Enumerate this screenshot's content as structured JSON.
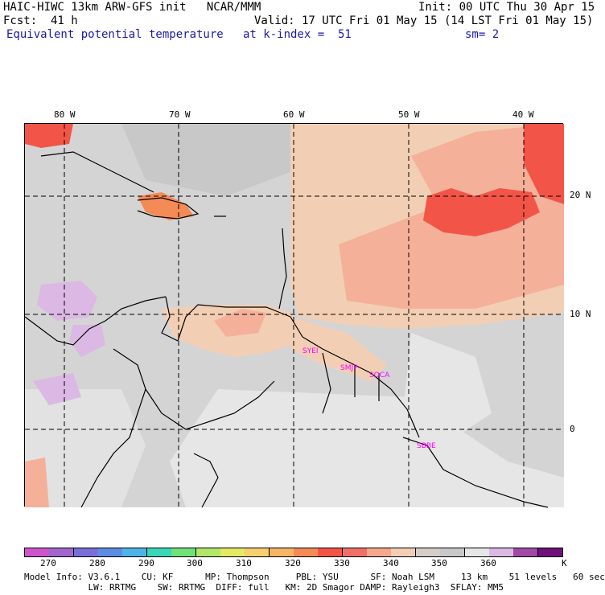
{
  "header": {
    "model_line": "HAIC-HIWC 13km ARW-GFS init   NCAR/MMM",
    "init_line": "Init: 00 UTC Thu 30 Apr 15",
    "fcst_line": "Fcst:  41 h",
    "valid_line": "Valid: 17 UTC Fri 01 May 15 (14 LST Fri 01 May 15)",
    "field_name": "Equivalent potential temperature",
    "level": "at k-index =  51",
    "smooth": "sm= 2"
  },
  "map": {
    "lon_labels": [
      "80 W",
      "70 W",
      "60 W",
      "50 W",
      "40 W"
    ],
    "lat_labels": [
      "20 N",
      "10 N",
      "0"
    ],
    "stations": [
      "SYEI",
      "SMJP",
      "SOCA",
      "SBBE"
    ],
    "station_color": "#ff00ff",
    "background_color": "#d4d4d4"
  },
  "colorbar": {
    "colors": [
      "#cc55cc",
      "#a166cc",
      "#7a6fd9",
      "#5c8de0",
      "#4fb3e8",
      "#3ad6b8",
      "#6fe07a",
      "#b2e86a",
      "#e5ea63",
      "#f5d06e",
      "#f6b465",
      "#f48a55",
      "#f25548",
      "#f07068",
      "#f5a88c",
      "#f2cfb4",
      "#d6ccc8",
      "#c8c8c8",
      "#e6e6e6",
      "#dcb8e4",
      "#a04aa6",
      "#70107a"
    ],
    "ticks": [
      "270",
      "280",
      "290",
      "300",
      "310",
      "320",
      "330",
      "340",
      "350",
      "360"
    ],
    "unit": "K"
  },
  "footer": {
    "line1": "Model Info: V3.6.1    CU: KF      MP: Thompson     PBL: YSU      SF: Noah LSM     13 km    51 levels   60 sec",
    "line2": "            LW: RRTMG    SW: RRTMG  DIFF: full   KM: 2D Smagor DAMP: Rayleigh3  SFLAY: MM5"
  }
}
